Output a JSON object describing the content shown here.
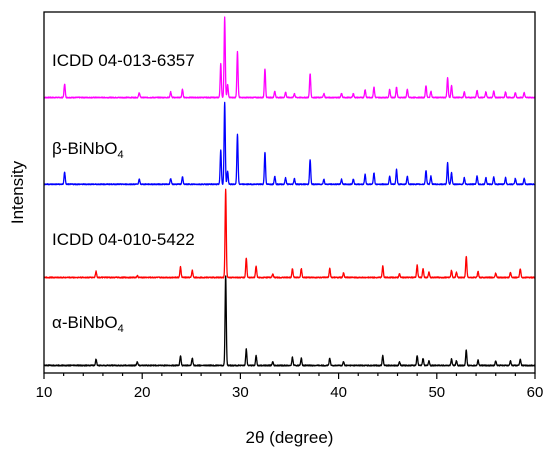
{
  "chart_data": {
    "type": "line",
    "xlabel": "2θ (degree)",
    "ylabel": "Intensity",
    "xlim": [
      10,
      60
    ],
    "x_ticks": [
      10,
      20,
      30,
      40,
      50,
      60
    ],
    "y_ticks_shown": false,
    "grid": false,
    "legend": "none",
    "series": [
      {
        "name": "ICDD 04-013-6357",
        "color": "#ff00ff",
        "offset": 3,
        "baseline_level": 0.02,
        "peaks": [
          [
            12.1,
            0.17
          ],
          [
            19.7,
            0.06
          ],
          [
            22.9,
            0.07
          ],
          [
            24.1,
            0.1
          ],
          [
            28.0,
            0.42
          ],
          [
            28.4,
            1.0
          ],
          [
            28.7,
            0.16
          ],
          [
            29.7,
            0.57
          ],
          [
            32.5,
            0.36
          ],
          [
            33.5,
            0.08
          ],
          [
            34.6,
            0.07
          ],
          [
            35.5,
            0.05
          ],
          [
            37.1,
            0.3
          ],
          [
            38.5,
            0.05
          ],
          [
            40.3,
            0.05
          ],
          [
            41.5,
            0.05
          ],
          [
            42.7,
            0.1
          ],
          [
            43.6,
            0.13
          ],
          [
            45.2,
            0.1
          ],
          [
            45.9,
            0.13
          ],
          [
            47.0,
            0.1
          ],
          [
            48.9,
            0.15
          ],
          [
            49.4,
            0.08
          ],
          [
            51.1,
            0.25
          ],
          [
            51.5,
            0.15
          ],
          [
            52.8,
            0.07
          ],
          [
            54.1,
            0.09
          ],
          [
            55.0,
            0.07
          ],
          [
            55.8,
            0.08
          ],
          [
            57.0,
            0.07
          ],
          [
            58.0,
            0.06
          ],
          [
            58.9,
            0.06
          ]
        ]
      },
      {
        "name": "β-BiNbO₄",
        "label_main": "β-BiNbO",
        "label_sub": "4",
        "color": "#0000ff",
        "offset": 2,
        "baseline_level": 0.03,
        "peaks": [
          [
            12.1,
            0.15
          ],
          [
            19.7,
            0.06
          ],
          [
            22.9,
            0.07
          ],
          [
            24.1,
            0.09
          ],
          [
            28.0,
            0.42
          ],
          [
            28.4,
            1.0
          ],
          [
            28.7,
            0.16
          ],
          [
            29.7,
            0.61
          ],
          [
            32.5,
            0.39
          ],
          [
            33.5,
            0.1
          ],
          [
            34.6,
            0.08
          ],
          [
            35.5,
            0.07
          ],
          [
            37.1,
            0.3
          ],
          [
            38.5,
            0.06
          ],
          [
            40.3,
            0.06
          ],
          [
            41.5,
            0.06
          ],
          [
            42.7,
            0.12
          ],
          [
            43.6,
            0.14
          ],
          [
            45.2,
            0.1
          ],
          [
            45.9,
            0.18
          ],
          [
            47.0,
            0.1
          ],
          [
            48.9,
            0.17
          ],
          [
            49.4,
            0.1
          ],
          [
            51.1,
            0.26
          ],
          [
            51.5,
            0.14
          ],
          [
            52.8,
            0.08
          ],
          [
            54.1,
            0.1
          ],
          [
            55.0,
            0.08
          ],
          [
            55.8,
            0.09
          ],
          [
            57.0,
            0.08
          ],
          [
            58.0,
            0.07
          ],
          [
            58.9,
            0.07
          ]
        ]
      },
      {
        "name": "ICDD 04-010-5422",
        "color": "#ff0000",
        "offset": 1,
        "baseline_level": 0.02,
        "peaks": [
          [
            15.3,
            0.07
          ],
          [
            19.5,
            0.02
          ],
          [
            23.9,
            0.12
          ],
          [
            25.1,
            0.08
          ],
          [
            28.5,
            1.0
          ],
          [
            30.6,
            0.22
          ],
          [
            31.6,
            0.13
          ],
          [
            33.3,
            0.04
          ],
          [
            35.3,
            0.1
          ],
          [
            36.2,
            0.1
          ],
          [
            39.1,
            0.1
          ],
          [
            40.5,
            0.05
          ],
          [
            44.5,
            0.13
          ],
          [
            46.2,
            0.04
          ],
          [
            48.0,
            0.14
          ],
          [
            48.6,
            0.1
          ],
          [
            49.2,
            0.06
          ],
          [
            51.5,
            0.08
          ],
          [
            52.0,
            0.06
          ],
          [
            53.0,
            0.24
          ],
          [
            54.2,
            0.07
          ],
          [
            56.0,
            0.05
          ],
          [
            57.5,
            0.06
          ],
          [
            58.5,
            0.1
          ]
        ]
      },
      {
        "name": "α-BiNbO₄",
        "label_main": "α-BiNbO",
        "label_sub": "4",
        "color": "#000000",
        "offset": 0,
        "baseline_level": 0.02,
        "peaks": [
          [
            15.3,
            0.07
          ],
          [
            19.5,
            0.04
          ],
          [
            23.9,
            0.11
          ],
          [
            25.1,
            0.08
          ],
          [
            28.5,
            1.0
          ],
          [
            30.6,
            0.18
          ],
          [
            31.6,
            0.11
          ],
          [
            33.3,
            0.04
          ],
          [
            35.3,
            0.09
          ],
          [
            36.2,
            0.08
          ],
          [
            39.1,
            0.08
          ],
          [
            40.5,
            0.04
          ],
          [
            44.5,
            0.11
          ],
          [
            46.2,
            0.04
          ],
          [
            48.0,
            0.11
          ],
          [
            48.6,
            0.08
          ],
          [
            49.2,
            0.05
          ],
          [
            51.5,
            0.07
          ],
          [
            52.0,
            0.05
          ],
          [
            53.0,
            0.17
          ],
          [
            54.2,
            0.06
          ],
          [
            56.0,
            0.05
          ],
          [
            57.5,
            0.05
          ],
          [
            58.5,
            0.07
          ]
        ]
      }
    ]
  }
}
